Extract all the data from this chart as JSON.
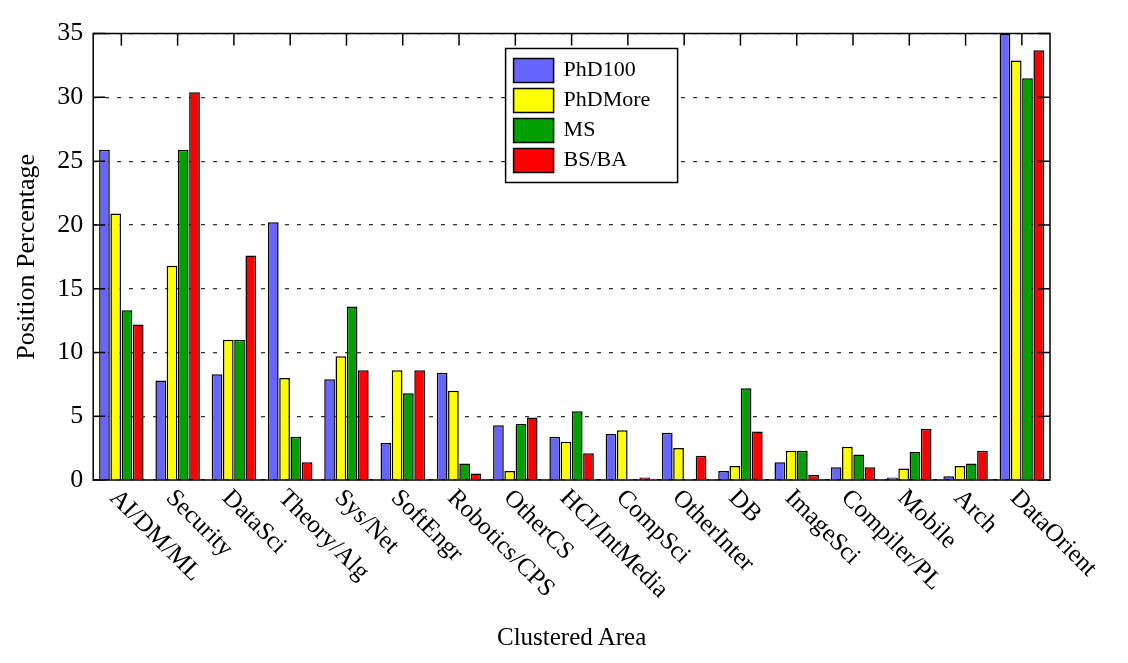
{
  "chart_data": {
    "type": "bar",
    "xlabel": "Clustered Area",
    "ylabel": "Position Percentage",
    "categories": [
      "AI/DM/ML",
      "Security",
      "DataSci",
      "Theory/Alg",
      "Sys/Net",
      "SoftEngr",
      "Robotics/CPS",
      "OtherCS",
      "HCI/IntMedia",
      "CompSci",
      "OtherInter",
      "DB",
      "ImageSci",
      "Compiler/PL",
      "Mobile",
      "Arch",
      "DataOrient"
    ],
    "series": [
      {
        "name": "PhD100",
        "color": "#6666ff",
        "values": [
          25.9,
          7.8,
          8.3,
          20.2,
          7.9,
          2.9,
          8.4,
          4.3,
          3.4,
          3.6,
          3.7,
          0.7,
          1.4,
          1.0,
          0.2,
          0.3,
          35
        ]
      },
      {
        "name": "PhDMore",
        "color": "#ffff00",
        "values": [
          20.9,
          16.8,
          11.0,
          8.0,
          9.7,
          8.6,
          7.0,
          0.7,
          3.0,
          3.9,
          2.5,
          1.1,
          2.3,
          2.6,
          0.9,
          1.1,
          32.9
        ]
      },
      {
        "name": "MS",
        "color": "#00a000",
        "values": [
          13.3,
          25.9,
          11.0,
          3.4,
          13.6,
          6.8,
          1.3,
          4.4,
          5.4,
          null,
          null,
          7.2,
          2.3,
          2.0,
          2.2,
          1.3,
          31.5
        ]
      },
      {
        "name": "BS/BA",
        "color": "#ff0000",
        "values": [
          12.2,
          30.4,
          17.6,
          1.4,
          8.6,
          8.6,
          0.5,
          4.9,
          2.1,
          0.2,
          1.9,
          3.8,
          0.4,
          1.0,
          4.0,
          2.3,
          33.7
        ]
      }
    ],
    "ylim": [
      0,
      35
    ],
    "yticks": [
      0,
      5,
      10,
      15,
      20,
      25,
      30,
      35
    ],
    "grid": "y",
    "legend": "top"
  }
}
